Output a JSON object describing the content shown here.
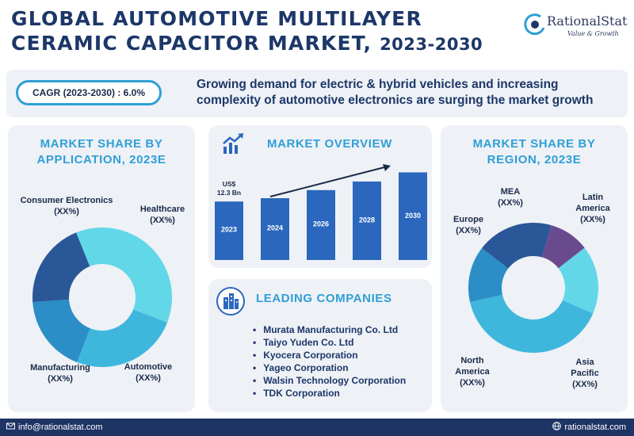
{
  "header": {
    "title_line1": "GLOBAL AUTOMOTIVE MULTILAYER",
    "title_line2": "CERAMIC CAPACITOR MARKET,",
    "title_year": "2023-2030"
  },
  "logo": {
    "name": "RationalStat",
    "tagline": "Value & Growth",
    "icon": "rationalstat-logo-icon"
  },
  "banner": {
    "cagr": "CAGR (2023-2030) : 6.0%",
    "headline": "Growing demand for electric & hybrid vehicles and increasing complexity of automotive electronics are surging the market growth"
  },
  "application_panel": {
    "heading_line1": "MARKET SHARE BY",
    "heading_line2": "APPLICATION, 2023E"
  },
  "overview_panel": {
    "heading": "MARKET OVERVIEW",
    "icon": "growth-chart-icon"
  },
  "region_panel": {
    "heading_line1": "MARKET SHARE BY",
    "heading_line2": "REGION, 2023E"
  },
  "companies_panel": {
    "heading": "LEADING COMPANIES",
    "icon": "buildings-icon",
    "items": [
      "Murata Manufacturing Co. Ltd",
      "Taiyo Yuden Co. Ltd",
      "Kyocera Corporation",
      "Yageo Corporation",
      "Walsin Technology Corporation",
      "TDK Corporation"
    ]
  },
  "footer": {
    "email": "info@rationalstat.com",
    "website": "rationalstat.com",
    "email_icon": "mail-icon",
    "web_icon": "globe-icon"
  },
  "colors": {
    "navy": "#1c3768",
    "accent_blue": "#2f9fd6",
    "panel_bg": "#eef1f6",
    "bar": "#2b67bd",
    "footer": "#1d3464"
  },
  "chart_data": [
    {
      "type": "pie",
      "title": "MARKET SHARE BY APPLICATION, 2023E",
      "donut": true,
      "slices": [
        {
          "label": "Consumer Electronics",
          "value_label": "(XX%)",
          "share": 37,
          "color": "#62d7e8"
        },
        {
          "label": "Healthcare",
          "value_label": "(XX%)",
          "share": 25,
          "color": "#3fb7dd"
        },
        {
          "label": "Automotive",
          "value_label": "(XX%)",
          "share": 18,
          "color": "#2b8ec6"
        },
        {
          "label": "Manufacturing",
          "value_label": "(XX%)",
          "share": 20,
          "color": "#2a5797"
        }
      ]
    },
    {
      "type": "bar",
      "title": "MARKET OVERVIEW",
      "categories": [
        "2023",
        "2024",
        "2026",
        "2028",
        "2030"
      ],
      "values": [
        12.3,
        13.0,
        14.7,
        16.5,
        19.0
      ],
      "value_labels": [
        "US$ 12.3 Bn",
        "",
        "",
        "",
        ""
      ],
      "ylim": [
        0,
        20
      ],
      "trend_arrow": true
    },
    {
      "type": "pie",
      "title": "MARKET SHARE BY REGION, 2023E",
      "donut": true,
      "slices": [
        {
          "label": "Latin America",
          "value_label": "(XX%)",
          "share": 17,
          "color": "#62d7e8"
        },
        {
          "label": "Asia Pacific",
          "value_label": "(XX%)",
          "share": 40,
          "color": "#3fb7dd"
        },
        {
          "label": "North America",
          "value_label": "(XX%)",
          "share": 14,
          "color": "#2b8ec6"
        },
        {
          "label": "Europe",
          "value_label": "(XX%)",
          "share": 19,
          "color": "#2a5797"
        },
        {
          "label": "MEA",
          "value_label": "(XX%)",
          "share": 10,
          "color": "#6a4a8e"
        }
      ]
    }
  ]
}
